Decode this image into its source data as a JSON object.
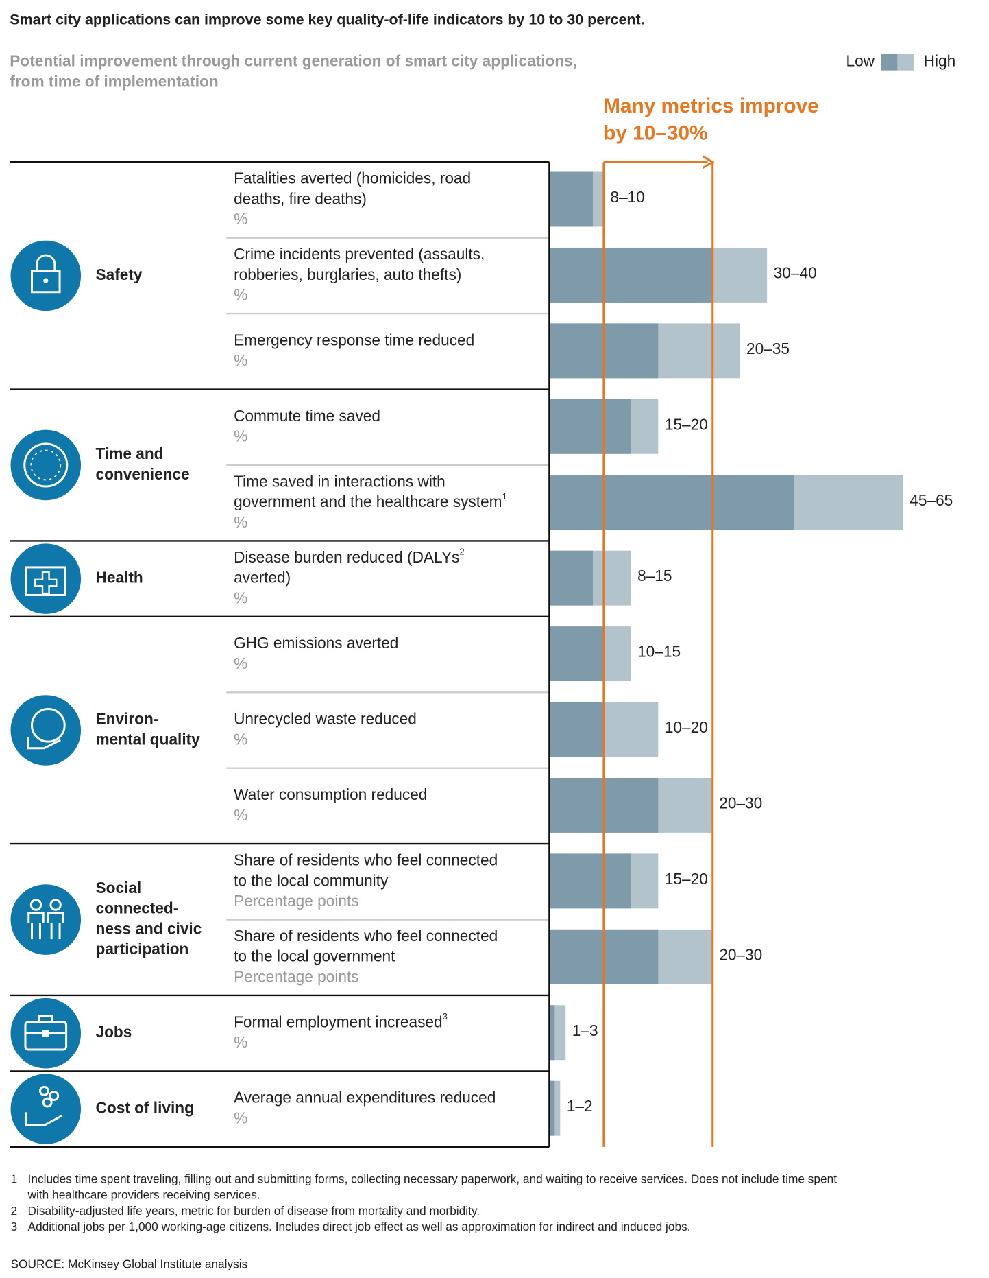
{
  "chart_data": {
    "type": "bar",
    "title": "Smart city applications can improve some key quality-of-life indicators by 10 to 30 percent.",
    "subtitle": [
      "Potential improvement through current generation of smart city applications,",
      "from time of implementation"
    ],
    "series": [
      {
        "name": "Low",
        "color": "#7f9aa9"
      },
      {
        "name": "High",
        "color": "#b3c3cc"
      }
    ],
    "annotation": [
      "Many metrics improve",
      "by 10–30%"
    ],
    "reference_lines": [
      10,
      30
    ],
    "reference_color": "#e87722",
    "icon_color": "#0f77aa",
    "xlim": [
      0,
      65
    ],
    "groups": [
      {
        "name": [
          "Safety"
        ],
        "metrics": [
          {
            "label": [
              "Fatalities averted (homicides, road",
              "deaths, fire deaths)"
            ],
            "note": null,
            "unit": "%",
            "low": 8,
            "high": 10,
            "range_label": "8–10"
          },
          {
            "label": [
              "Crime incidents prevented (assaults,",
              "robberies, burglaries, auto thefts)"
            ],
            "note": null,
            "unit": "%",
            "low": 30,
            "high": 40,
            "range_label": "30–40"
          },
          {
            "label": [
              "Emergency response time reduced"
            ],
            "note": null,
            "unit": "%",
            "low": 20,
            "high": 35,
            "range_label": "20–35"
          }
        ]
      },
      {
        "name": [
          "Time and",
          "convenience"
        ],
        "metrics": [
          {
            "label": [
              "Commute time saved"
            ],
            "note": null,
            "unit": "%",
            "low": 15,
            "high": 20,
            "range_label": "15–20"
          },
          {
            "label": [
              "Time saved in interactions with",
              "government and the healthcare system"
            ],
            "note": "1",
            "unit": "%",
            "low": 45,
            "high": 65,
            "range_label": "45–65"
          }
        ]
      },
      {
        "name": [
          "Health"
        ],
        "metrics": [
          {
            "label": [
              "Disease burden reduced (DALYs",
              "averted)"
            ],
            "note": "2",
            "note_line": 0,
            "unit": "%",
            "low": 8,
            "high": 15,
            "range_label": "8–15"
          }
        ]
      },
      {
        "name": [
          "Environ-",
          "mental quality"
        ],
        "metrics": [
          {
            "label": [
              "GHG emissions averted"
            ],
            "note": null,
            "unit": "%",
            "low": 10,
            "high": 15,
            "range_label": "10–15"
          },
          {
            "label": [
              "Unrecycled waste reduced"
            ],
            "note": null,
            "unit": "%",
            "low": 10,
            "high": 20,
            "range_label": "10–20"
          },
          {
            "label": [
              "Water consumption reduced"
            ],
            "note": null,
            "unit": "%",
            "low": 20,
            "high": 30,
            "range_label": "20–30"
          }
        ]
      },
      {
        "name": [
          "Social",
          "connected-",
          "ness and civic",
          "participation"
        ],
        "metrics": [
          {
            "label": [
              "Share of residents who feel connected",
              "to the local community"
            ],
            "note": null,
            "unit": "Percentage points",
            "low": 15,
            "high": 20,
            "range_label": "15–20"
          },
          {
            "label": [
              "Share of residents who feel connected",
              "to the local government"
            ],
            "note": null,
            "unit": "Percentage points",
            "low": 20,
            "high": 30,
            "range_label": "20–30"
          }
        ]
      },
      {
        "name": [
          "Jobs"
        ],
        "metrics": [
          {
            "label": [
              "Formal employment increased"
            ],
            "note": "3",
            "unit": "%",
            "low": 1,
            "high": 3,
            "range_label": "1–3"
          }
        ]
      },
      {
        "name": [
          "Cost of living"
        ],
        "metrics": [
          {
            "label": [
              "Average annual expenditures reduced"
            ],
            "note": null,
            "unit": "%",
            "low": 1,
            "high": 2,
            "range_label": "1–2"
          }
        ]
      }
    ],
    "footnotes": [
      {
        "number": "1",
        "text": [
          "Includes time spent traveling, filling out and submitting forms, collecting necessary paperwork, and waiting to receive services. Does not include time spent",
          "with healthcare providers receiving services."
        ]
      },
      {
        "number": "2",
        "text": [
          "Disability-adjusted life years, metric for burden of disease from mortality and morbidity."
        ]
      },
      {
        "number": "3",
        "text": [
          "Additional jobs per 1,000 working-age citizens. Includes direct job effect as well as approximation for indirect and induced jobs."
        ]
      }
    ],
    "source": "SOURCE:  McKinsey Global Institute analysis"
  }
}
